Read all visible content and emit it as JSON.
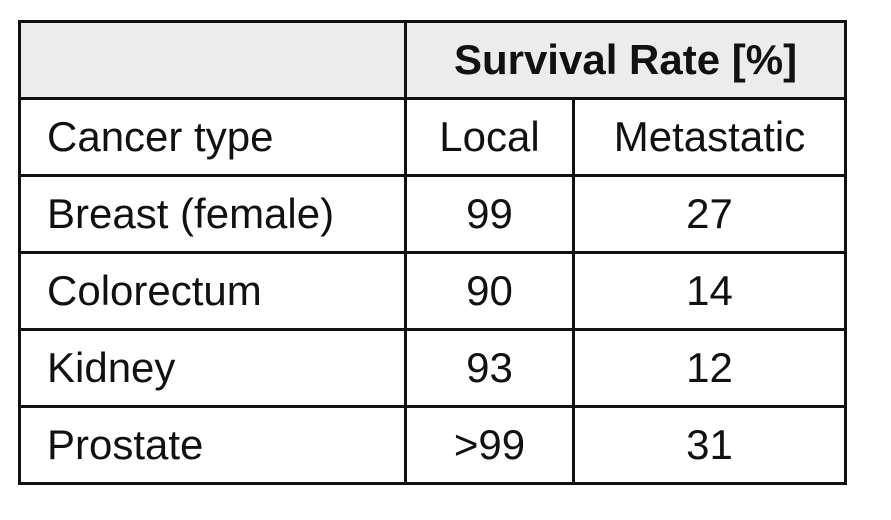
{
  "table": {
    "header_title": "Survival Rate [%]",
    "column_headers": [
      "Cancer type",
      "Local",
      "Metastatic"
    ],
    "rows": [
      {
        "cancer_type": "Breast (female)",
        "local": "99",
        "metastatic": "27"
      },
      {
        "cancer_type": "Colorectum",
        "local": "90",
        "metastatic": "14"
      },
      {
        "cancer_type": "Kidney",
        "local": "93",
        "metastatic": "12"
      },
      {
        "cancer_type": "Prostate",
        "local": ">99",
        "metastatic": "31"
      }
    ]
  },
  "chart_data": {
    "type": "table",
    "title": "Survival Rate [%]",
    "columns": [
      "Cancer type",
      "Local",
      "Metastatic"
    ],
    "rows": [
      [
        "Breast (female)",
        "99",
        "27"
      ],
      [
        "Colorectum",
        "90",
        "14"
      ],
      [
        "Kidney",
        "93",
        "12"
      ],
      [
        "Prostate",
        ">99",
        "31"
      ]
    ]
  }
}
